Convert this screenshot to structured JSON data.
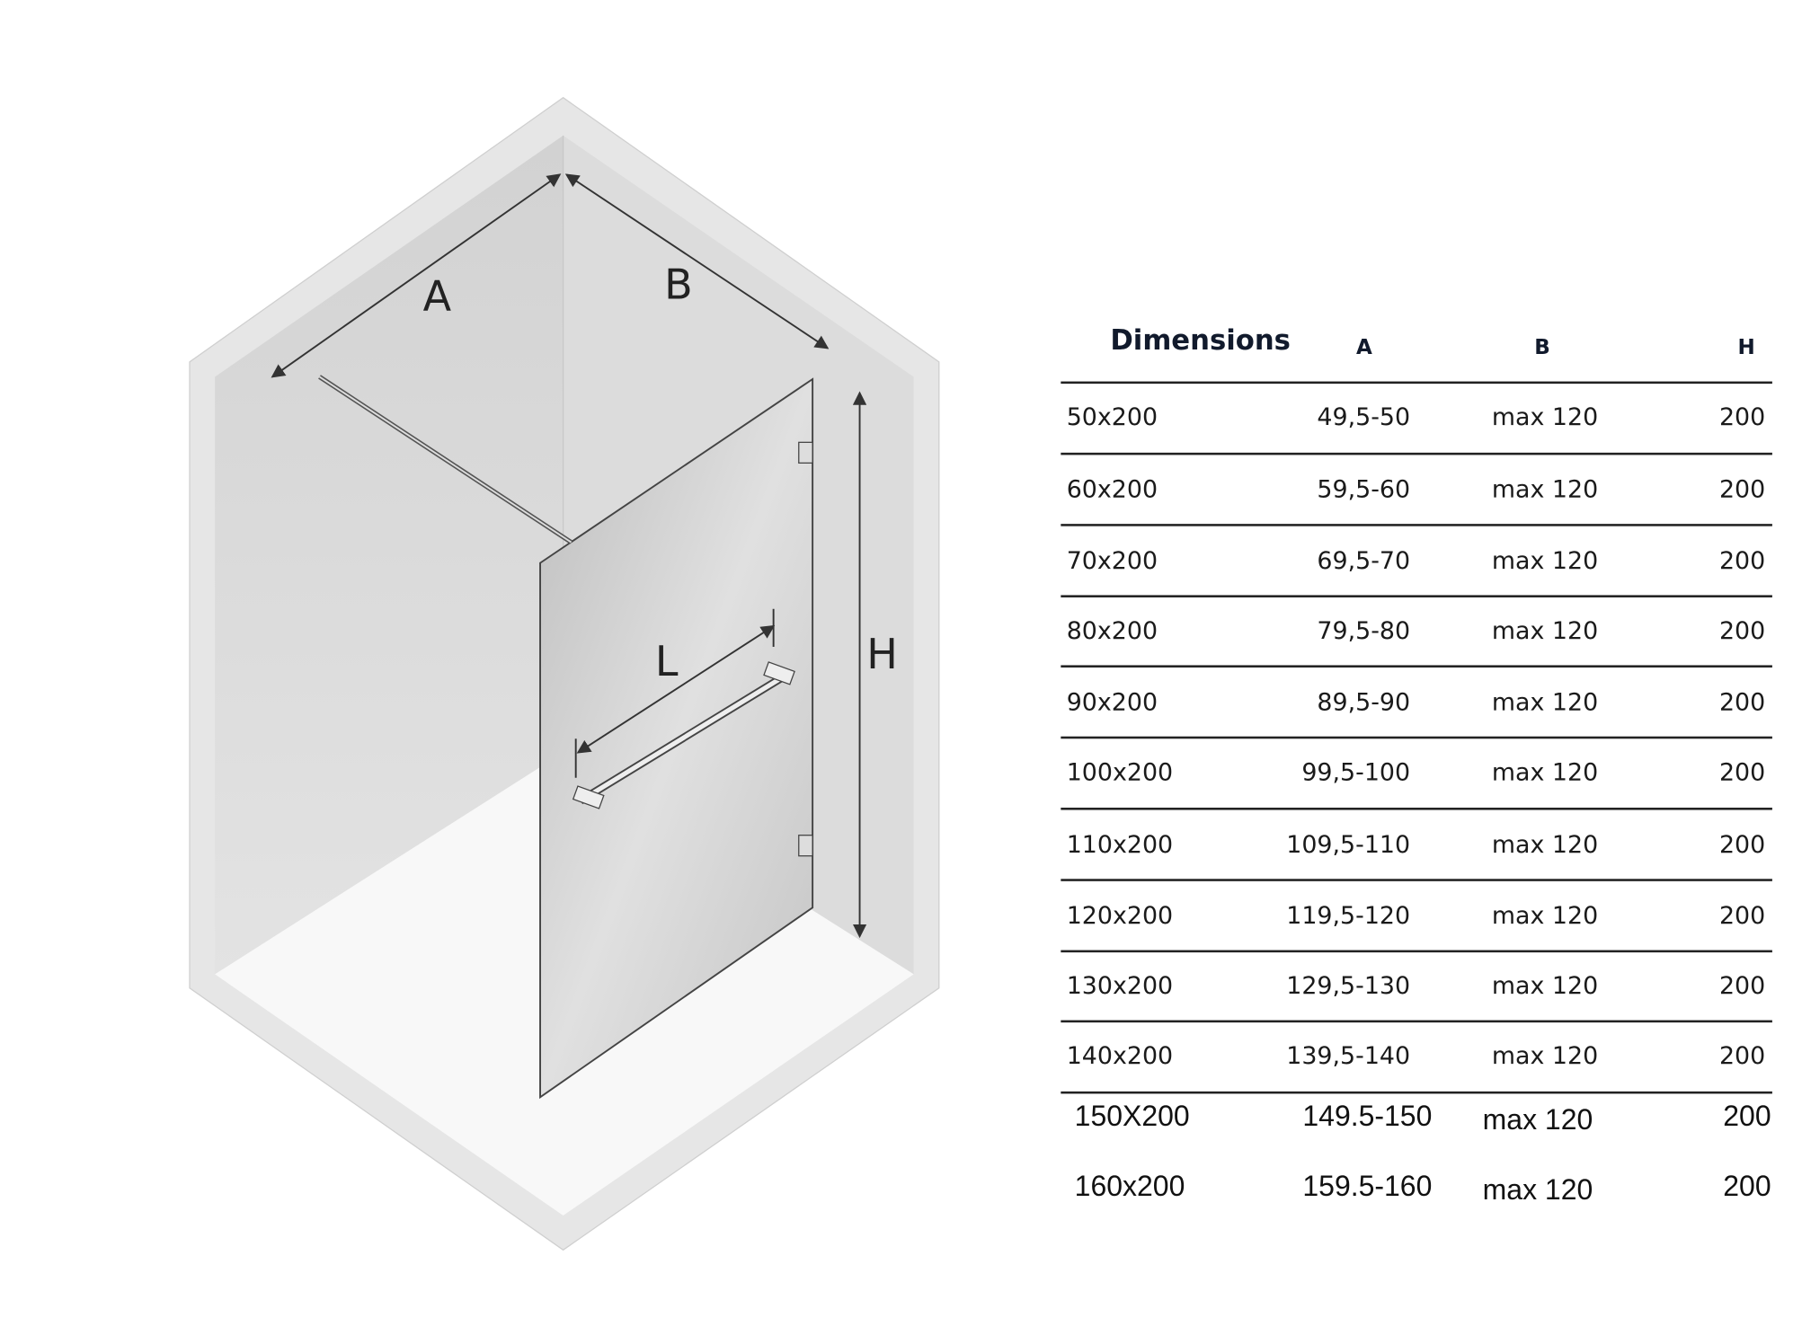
{
  "diagram": {
    "labels": {
      "a": "A",
      "b": "B",
      "h": "H",
      "l": "L"
    },
    "colors": {
      "frame": "#e6e6e6",
      "wall": "#d9d9d9",
      "floor": "#f7f7f7",
      "glass": "#c9c9c9",
      "line": "#333333"
    }
  },
  "table": {
    "headers": {
      "dimensions": "Dimensions",
      "a": "A",
      "b": "B",
      "h": "H"
    },
    "rows": [
      {
        "size": "50x200",
        "a": "49,5-50",
        "b": "max 120",
        "h": "200"
      },
      {
        "size": "60x200",
        "a": "59,5-60",
        "b": "max 120",
        "h": "200"
      },
      {
        "size": "70x200",
        "a": "69,5-70",
        "b": "max 120",
        "h": "200"
      },
      {
        "size": "80x200",
        "a": "79,5-80",
        "b": "max 120",
        "h": "200"
      },
      {
        "size": "90x200",
        "a": "89,5-90",
        "b": "max 120",
        "h": "200"
      },
      {
        "size": "100x200",
        "a": "99,5-100",
        "b": "max 120",
        "h": "200"
      },
      {
        "size": "110x200",
        "a": "109,5-110",
        "b": "max 120",
        "h": "200"
      },
      {
        "size": "120x200",
        "a": "119,5-120",
        "b": "max 120",
        "h": "200"
      },
      {
        "size": "130x200",
        "a": "129,5-130",
        "b": "max 120",
        "h": "200"
      },
      {
        "size": "140x200",
        "a": "139,5-140",
        "b": "max 120",
        "h": "200"
      },
      {
        "size": "150X200",
        "a": "149.5-150",
        "b": "max 120",
        "h": "200"
      },
      {
        "size": "160x200",
        "a": "159.5-160",
        "b": "max 120",
        "h": "200"
      }
    ]
  }
}
